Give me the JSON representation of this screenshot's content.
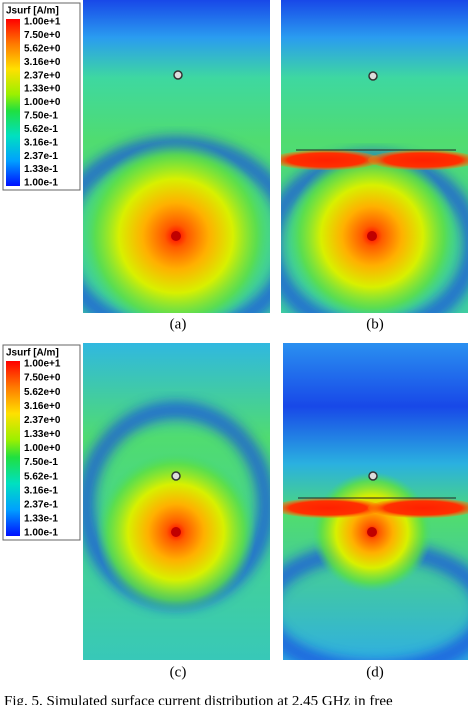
{
  "legends": [
    {
      "title": "Jsurf [A/m]",
      "ticks": [
        "1.00e+1",
        "7.50e+0",
        "5.62e+0",
        "3.16e+0",
        "2.37e+0",
        "1.33e+0",
        "1.00e+0",
        "7.50e-1",
        "5.62e-1",
        "3.16e-1",
        "2.37e-1",
        "1.33e-1",
        "1.00e-1"
      ]
    },
    {
      "title": "Jsurf [A/m]",
      "ticks": [
        "1.00e+1",
        "7.50e+0",
        "5.62e+0",
        "3.16e+0",
        "2.37e+0",
        "1.33e+0",
        "1.00e+0",
        "7.50e-1",
        "5.62e-1",
        "3.16e-1",
        "2.37e-1",
        "1.33e-1",
        "1.00e-1"
      ]
    }
  ],
  "panels": [
    {
      "label": "(a)"
    },
    {
      "label": "(b)"
    },
    {
      "label": "(c)"
    },
    {
      "label": "(d)"
    }
  ],
  "caption": "Fig. 5.   Simulated surface current distribution at 2.45 GHz in free"
}
